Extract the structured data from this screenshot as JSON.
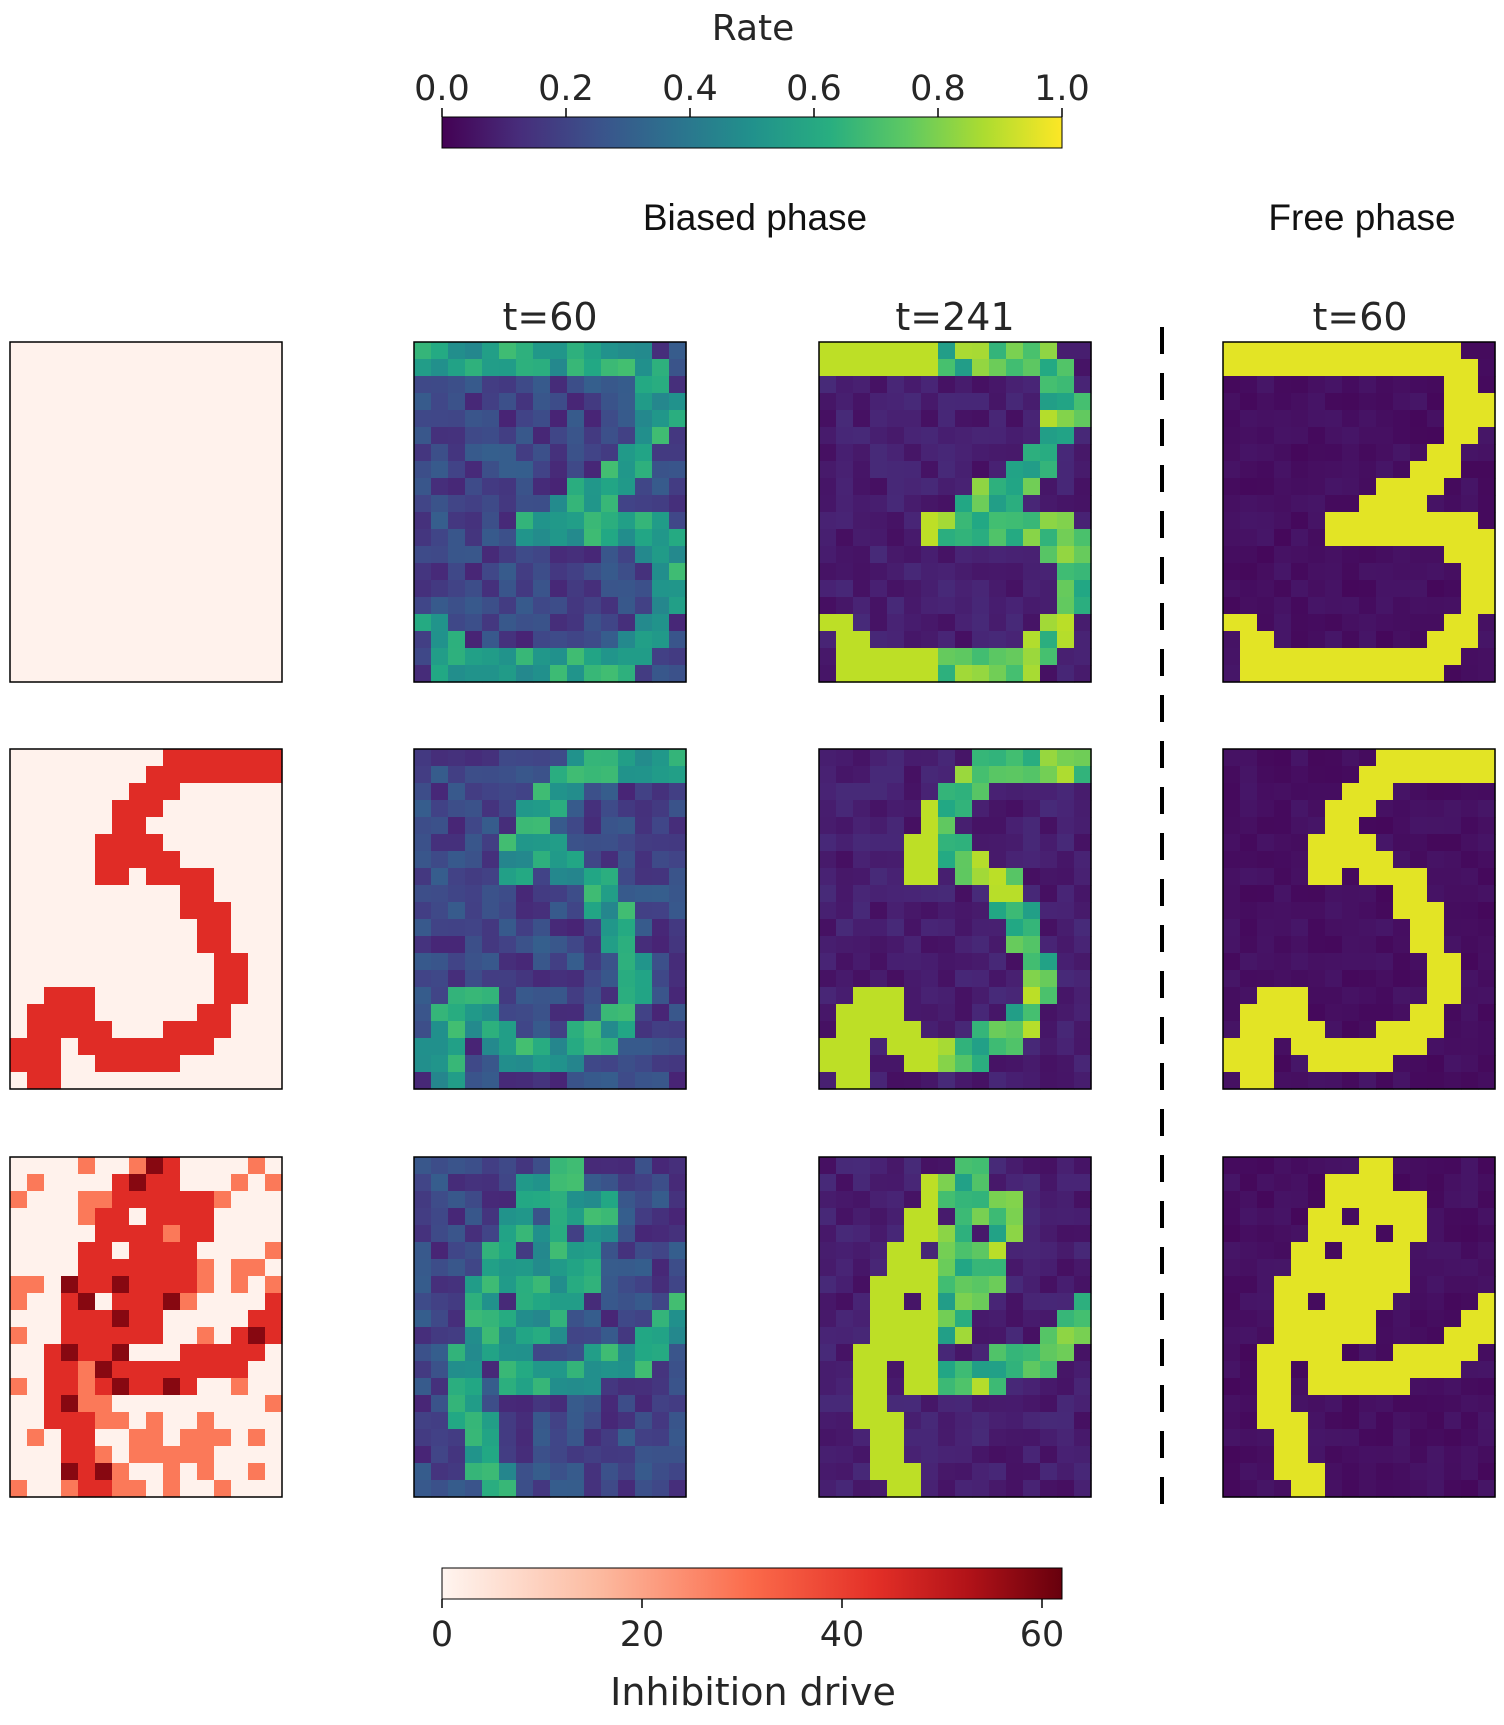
{
  "chart_data": {
    "type": "heatmap",
    "panel_titles": {
      "biased_phase": "Biased phase",
      "free_phase": "Free phase",
      "col_t60": "t=60",
      "col_t241": "t=241",
      "col_free_t60": "t=60"
    },
    "colorbars": [
      {
        "label": "Rate",
        "cmap": "viridis",
        "range": [
          0,
          1
        ],
        "ticks": [
          "0.0",
          "0.2",
          "0.4",
          "0.6",
          "0.8",
          "1.0"
        ],
        "tick_values": [
          0,
          0.2,
          0.4,
          0.6,
          0.8,
          1.0
        ],
        "placement": "top"
      },
      {
        "label": "Inhibition drive",
        "cmap": "reds",
        "range": [
          0,
          62
        ],
        "ticks": [
          "0",
          "20",
          "40",
          "60"
        ],
        "tick_values": [
          0,
          20,
          40,
          60
        ],
        "placement": "bottom"
      }
    ],
    "grid": {
      "rows": 20,
      "cols": 16
    },
    "digits": [
      "3",
      "5",
      "4"
    ],
    "colors": {
      "rate_low": "#440154",
      "rate_high": "#fde725",
      "inhibition_low": "#fff5f0",
      "inhibition_high": "#67000d",
      "separator": "#000000"
    }
  }
}
